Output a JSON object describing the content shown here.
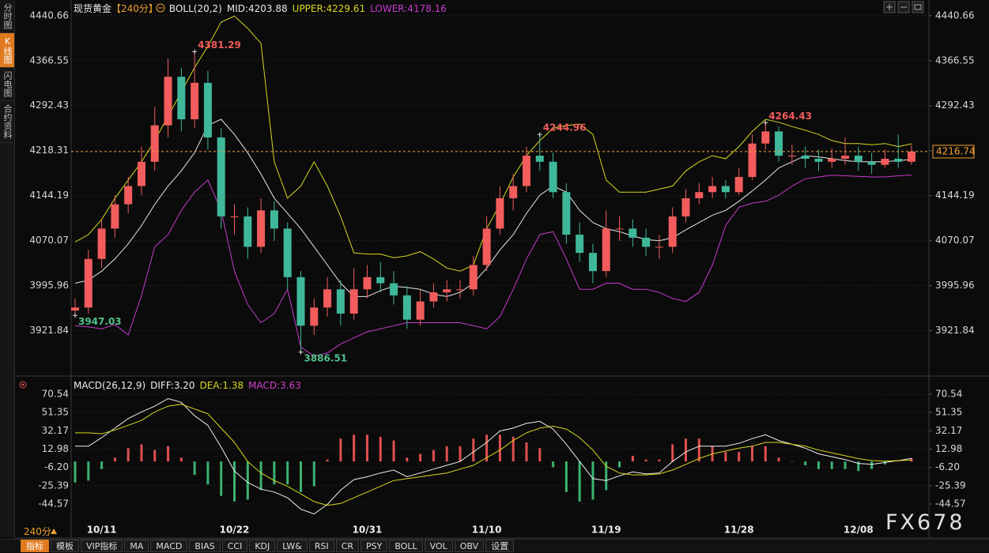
{
  "sidebar": [
    "分时图",
    "K线图",
    "闪电图",
    "合约资料"
  ],
  "period": "240分",
  "watermark": "FX678",
  "toolbar": [
    "指标",
    "模板",
    "VIP指标",
    "MA",
    "MACD",
    "BIAS",
    "CCI",
    "KDJ",
    "LW&",
    "RSI",
    "CR",
    "PSY",
    "BOLL",
    "VOL",
    "OBV",
    "设置"
  ],
  "chart_data": [
    {
      "type": "candlestick",
      "title": "现货黄金",
      "subtitle": "【240分】",
      "indicator": "BOLL(20,2)",
      "up_color": "#f25c5c",
      "down_color": "#3fb89a",
      "high_label_color": "#f25c5c",
      "low_label_color": "#52c08a",
      "last_price_color": "#f0a030",
      "ylim": [
        3855,
        4456
      ],
      "yticks": [
        4440.66,
        4366.55,
        4292.43,
        4218.31,
        4144.19,
        4070.07,
        3995.96,
        3921.84
      ],
      "grid": true,
      "open": [
        3955,
        3960,
        4040,
        4090,
        4130,
        4160,
        4200,
        4260,
        4340,
        4270,
        4330,
        4240,
        4110,
        4110,
        4060,
        4120,
        4090,
        4010,
        3930,
        3960,
        3990,
        3950,
        3990,
        4010,
        4000,
        3980,
        3940,
        3970,
        3985,
        3990,
        3990,
        4030,
        4090,
        4140,
        4160,
        4210,
        4200,
        4150,
        4080,
        4050,
        4020,
        4090,
        4090,
        4075,
        4060,
        4060,
        4110,
        4140,
        4150,
        4160,
        4150,
        4175,
        4230,
        4250,
        4210,
        4210,
        4205,
        4200,
        4205,
        4210,
        4200,
        4195,
        4205,
        4200
      ],
      "high": [
        3975,
        4055,
        4105,
        4145,
        4175,
        4225,
        4290,
        4370,
        4355,
        4381.29,
        4350,
        4255,
        4130,
        4125,
        4140,
        4135,
        4100,
        4020,
        3975,
        4010,
        4005,
        4025,
        4030,
        4035,
        4020,
        3995,
        3990,
        4000,
        4005,
        4005,
        4045,
        4110,
        4160,
        4180,
        4225,
        4244.96,
        4215,
        4165,
        4100,
        4065,
        4120,
        4110,
        4105,
        4090,
        4080,
        4125,
        4155,
        4165,
        4175,
        4170,
        4190,
        4245,
        4264.43,
        4258,
        4228,
        4225,
        4220,
        4222,
        4240,
        4225,
        4215,
        4220,
        4245,
        4228
      ],
      "low": [
        3947.03,
        3950,
        4025,
        4075,
        4115,
        4145,
        4185,
        4240,
        4250,
        4255,
        4220,
        4090,
        4080,
        4040,
        4050,
        4070,
        3990,
        3886.51,
        3915,
        3945,
        3930,
        3940,
        3975,
        3985,
        3965,
        3925,
        3930,
        3960,
        3970,
        3975,
        3980,
        4020,
        4080,
        4120,
        4150,
        4185,
        4140,
        4065,
        4035,
        4000,
        4010,
        4070,
        4060,
        4045,
        4040,
        4050,
        4100,
        4130,
        4140,
        4140,
        4145,
        4170,
        4220,
        4200,
        4195,
        4190,
        4185,
        4190,
        4195,
        4185,
        4180,
        4190,
        4190,
        4195
      ],
      "close": [
        3960,
        4040,
        4090,
        4130,
        4160,
        4200,
        4260,
        4340,
        4270,
        4330,
        4240,
        4110,
        4110,
        4060,
        4120,
        4090,
        4010,
        3930,
        3960,
        3990,
        3950,
        3990,
        4010,
        4000,
        3980,
        3940,
        3970,
        3985,
        3990,
        3990,
        4030,
        4090,
        4140,
        4160,
        4210,
        4200,
        4150,
        4080,
        4050,
        4020,
        4090,
        4090,
        4075,
        4060,
        4060,
        4110,
        4140,
        4150,
        4160,
        4150,
        4175,
        4230,
        4250,
        4210,
        4210,
        4205,
        4200,
        4205,
        4210,
        4200,
        4195,
        4205,
        4200,
        4216.74
      ],
      "series": [
        {
          "name": "MID:4203.88",
          "color": "#e8e8e8",
          "values": [
            4000,
            4005,
            4020,
            4040,
            4065,
            4095,
            4130,
            4160,
            4185,
            4215,
            4260,
            4270,
            4245,
            4215,
            4180,
            4140,
            4115,
            4090,
            4060,
            4030,
            4000,
            3978,
            3978,
            3988,
            3995,
            3993,
            3990,
            3982,
            3978,
            3985,
            4000,
            4025,
            4055,
            4080,
            4115,
            4145,
            4160,
            4150,
            4120,
            4100,
            4090,
            4085,
            4078,
            4072,
            4070,
            4075,
            4088,
            4100,
            4112,
            4120,
            4135,
            4152,
            4170,
            4190,
            4200,
            4210,
            4208,
            4205,
            4202,
            4200,
            4200,
            4200,
            4202,
            4203.88
          ]
        },
        {
          "name": "UPPER:4229.61",
          "color": "#d8d820",
          "values": [
            4068,
            4080,
            4105,
            4140,
            4170,
            4200,
            4235,
            4275,
            4315,
            4355,
            4390,
            4430,
            4440,
            4420,
            4395,
            4200,
            4140,
            4160,
            4200,
            4160,
            4110,
            4050,
            4048,
            4048,
            4042,
            4045,
            4052,
            4040,
            4025,
            4020,
            4030,
            4090,
            4130,
            4175,
            4210,
            4235,
            4255,
            4260,
            4262,
            4245,
            4170,
            4150,
            4150,
            4150,
            4155,
            4160,
            4185,
            4200,
            4210,
            4205,
            4225,
            4250,
            4270,
            4265,
            4258,
            4252,
            4245,
            4235,
            4230,
            4230,
            4228,
            4230,
            4225,
            4229.61
          ]
        },
        {
          "name": "LOWER:4178.16",
          "color": "#c83ad0",
          "values": [
            3930,
            3928,
            3925,
            3932,
            3915,
            3980,
            4060,
            4080,
            4120,
            4150,
            4170,
            4120,
            4020,
            3965,
            3935,
            3950,
            3990,
            3895,
            3880,
            3885,
            3900,
            3910,
            3920,
            3925,
            3930,
            3935,
            3935,
            3935,
            3935,
            3935,
            3930,
            3925,
            3945,
            3990,
            4040,
            4080,
            4085,
            4040,
            3990,
            3990,
            4000,
            4000,
            3990,
            3990,
            3985,
            3975,
            3970,
            3985,
            4030,
            4095,
            4125,
            4132,
            4135,
            4145,
            4160,
            4172,
            4175,
            4178,
            4177,
            4176,
            4175,
            4175,
            4177,
            4178.16
          ]
        }
      ]
    },
    {
      "type": "macd",
      "title": "MACD(26,12,9)",
      "up_color": "#e05050",
      "down_color": "#3cb371",
      "ylim": [
        -62.8,
        84.6
      ],
      "yticks": [
        70.54,
        51.35,
        32.17,
        12.98,
        {
          "value": -6.2,
          "label": "-6.20"
        },
        -25.39,
        -44.57
      ],
      "grid": true,
      "categories": [
        null,
        null,
        "10/11",
        null,
        null,
        null,
        null,
        null,
        null,
        null,
        null,
        null,
        "10/22",
        null,
        null,
        null,
        null,
        null,
        null,
        null,
        null,
        null,
        "10/31",
        null,
        null,
        null,
        null,
        null,
        null,
        null,
        null,
        "11/10",
        null,
        null,
        null,
        null,
        null,
        null,
        null,
        null,
        "11/19",
        null,
        null,
        null,
        null,
        null,
        null,
        null,
        null,
        null,
        "11/28",
        null,
        null,
        null,
        null,
        null,
        null,
        null,
        null,
        "12/08",
        null,
        null,
        null,
        null
      ],
      "series": [
        {
          "name": "MACD:3.63",
          "color": "#d040d0",
          "style": "histogram",
          "values": [
            -22,
            -20,
            -8,
            4,
            14,
            18,
            12,
            16,
            4,
            -14,
            -24,
            -36,
            -42,
            -40,
            -30,
            -24,
            -24,
            -32,
            -26,
            2,
            24,
            28,
            28,
            26,
            22,
            4,
            8,
            12,
            16,
            16,
            24,
            28,
            28,
            26,
            20,
            14,
            -6,
            -32,
            -42,
            -40,
            -30,
            -6,
            6,
            2,
            2,
            18,
            24,
            24,
            16,
            10,
            10,
            16,
            16,
            4,
            0,
            -4,
            -8,
            -8,
            -8,
            -10,
            -8,
            -3,
            0,
            3.63
          ]
        },
        {
          "name": "DIFF:3.20",
          "color": "#eeeeee",
          "style": "line",
          "values": [
            16,
            16,
            25,
            35,
            45,
            52,
            58,
            66,
            62,
            48,
            38,
            15,
            -10,
            -22,
            -29,
            -32,
            -38,
            -50,
            -55,
            -45,
            -30,
            -19,
            -16,
            -12,
            -9,
            -16,
            -12,
            -8,
            -4,
            0,
            10,
            20,
            32,
            35,
            40,
            42,
            34,
            18,
            0,
            -18,
            -20,
            -15,
            -11,
            -13,
            -12,
            0,
            10,
            16,
            16,
            16,
            19,
            24,
            28,
            22,
            18,
            14,
            8,
            5,
            2,
            -2,
            -3,
            -1,
            1,
            3.2
          ]
        },
        {
          "name": "DEA:1.38",
          "color": "#d8d820",
          "style": "line",
          "values": [
            30,
            30,
            29,
            33,
            38,
            43,
            52,
            58,
            60,
            55,
            50,
            35,
            20,
            0,
            -12,
            -20,
            -26,
            -34,
            -42,
            -46,
            -44,
            -38,
            -32,
            -26,
            -20,
            -18,
            -16,
            -14,
            -12,
            -8,
            -4,
            4,
            12,
            22,
            30,
            35,
            37,
            34,
            25,
            12,
            -5,
            -12,
            -14,
            -14,
            -13,
            -9,
            -3,
            3,
            8,
            11,
            14,
            16,
            20,
            20,
            18,
            16,
            12,
            9,
            6,
            3,
            1,
            0.5,
            1,
            1.38
          ]
        }
      ]
    }
  ]
}
